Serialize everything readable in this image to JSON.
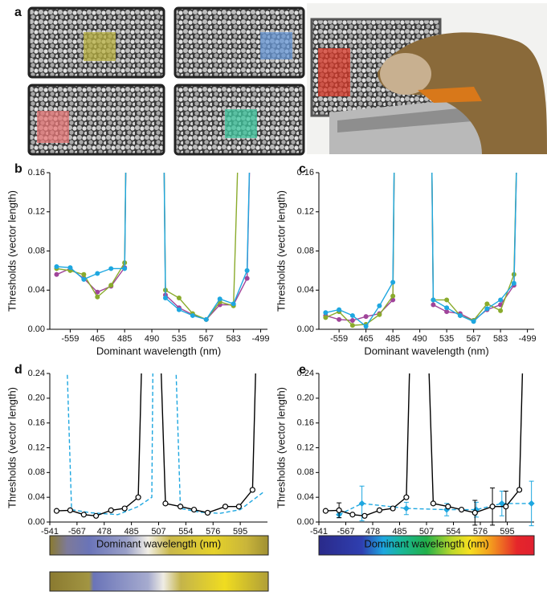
{
  "panel_a_label": "a",
  "chart_data": [
    {
      "type": "line",
      "label": "b",
      "ylabel": "Thresholds (vector length)",
      "xlabel": "Dominant wavelength (nm)",
      "xlim": [
        0,
        16
      ],
      "ylim": [
        0,
        0.16
      ],
      "xticks": [
        {
          "value": 1.5,
          "label": "-559"
        },
        {
          "value": 3.5,
          "label": "465"
        },
        {
          "value": 5.5,
          "label": "485"
        },
        {
          "value": 7.5,
          "label": "490"
        },
        {
          "value": 9.5,
          "label": "535"
        },
        {
          "value": 11.5,
          "label": "567"
        },
        {
          "value": 13.5,
          "label": "583"
        },
        {
          "value": 15.5,
          "label": "-499"
        }
      ],
      "yticks": [
        {
          "value": 0,
          "label": "0.00"
        },
        0.04,
        0.08,
        0.12,
        0.16
      ],
      "series": [
        {
          "color": "#a0449a",
          "marker": "circle-filled",
          "dashed": false,
          "x": [
            0.5,
            1.5,
            2.5,
            3.5,
            4.5,
            5.5,
            5.7,
            7,
            8.3,
            8.5,
            9.5,
            10.5,
            11.5,
            12.5,
            13.5,
            14.5,
            14.9
          ],
          "values": [
            0.056,
            0.062,
            0.052,
            0.038,
            0.044,
            0.063,
            0.3,
            null,
            0.3,
            0.035,
            0.022,
            0.015,
            0.01,
            0.025,
            0.025,
            0.052,
            0.3
          ]
        },
        {
          "color": "#8aab2c",
          "marker": "circle-filled",
          "dashed": false,
          "x": [
            0.5,
            1.5,
            2.5,
            3.5,
            4.5,
            5.5,
            5.7,
            7,
            8.3,
            8.5,
            9.5,
            10.5,
            11.5,
            12.5,
            13.5,
            14.1
          ],
          "values": [
            0.062,
            0.06,
            0.056,
            0.033,
            0.045,
            0.068,
            0.3,
            null,
            0.3,
            0.04,
            0.032,
            0.016,
            0.01,
            0.028,
            0.024,
            0.3
          ]
        },
        {
          "color": "#1ea7e0",
          "marker": "circle-filled",
          "dashed": false,
          "x": [
            0.5,
            1.5,
            2.5,
            3.5,
            4.5,
            5.5,
            5.7,
            7,
            8.3,
            8.5,
            9.5,
            10.5,
            11.5,
            12.5,
            13.5,
            14.5,
            14.9
          ],
          "values": [
            0.064,
            0.063,
            0.051,
            0.057,
            0.062,
            0.062,
            0.3,
            null,
            0.3,
            0.032,
            0.02,
            0.014,
            0.01,
            0.031,
            0.026,
            0.06,
            0.3
          ]
        }
      ]
    },
    {
      "type": "line",
      "label": "c",
      "ylabel": "Thresholds (vector length)",
      "xlabel": "Dominant wavelength (nm)",
      "xlim": [
        0,
        16
      ],
      "ylim": [
        0,
        0.16
      ],
      "xticks": [
        {
          "value": 1.5,
          "label": "-559"
        },
        {
          "value": 3.5,
          "label": "465"
        },
        {
          "value": 5.5,
          "label": "485"
        },
        {
          "value": 7.5,
          "label": "490"
        },
        {
          "value": 9.5,
          "label": "535"
        },
        {
          "value": 11.5,
          "label": "567"
        },
        {
          "value": 13.5,
          "label": "583"
        },
        {
          "value": 15.5,
          "label": "-499"
        }
      ],
      "yticks": [
        {
          "value": 0,
          "label": "0.00"
        },
        0.04,
        0.08,
        0.12,
        0.16
      ],
      "series": [
        {
          "color": "#a0449a",
          "marker": "circle-filled",
          "dashed": false,
          "x": [
            0.5,
            1.5,
            2.5,
            3.5,
            4.5,
            5.5,
            5.7,
            7,
            8.3,
            8.5,
            9.5,
            10.5,
            11.5,
            12.5,
            13.5,
            14.5,
            14.9
          ],
          "values": [
            0.014,
            0.01,
            0.009,
            0.013,
            0.016,
            0.03,
            0.3,
            null,
            0.3,
            0.025,
            0.018,
            0.016,
            0.009,
            0.02,
            0.025,
            0.045,
            0.3
          ]
        },
        {
          "color": "#8aab2c",
          "marker": "circle-filled",
          "dashed": false,
          "x": [
            0.5,
            1.5,
            2.5,
            3.5,
            4.5,
            5.5,
            5.7,
            7,
            8.3,
            8.5,
            9.5,
            10.5,
            11.5,
            12.5,
            13.5,
            14.5,
            14.9
          ],
          "values": [
            0.012,
            0.018,
            0.004,
            0.005,
            0.015,
            0.034,
            0.3,
            null,
            0.3,
            0.03,
            0.03,
            0.014,
            0.009,
            0.026,
            0.019,
            0.056,
            0.3
          ]
        },
        {
          "color": "#1ea7e0",
          "marker": "circle-filled",
          "dashed": false,
          "x": [
            0.5,
            1.5,
            2.5,
            3.5,
            4.5,
            5.5,
            5.7,
            7,
            8.3,
            8.5,
            9.5,
            10.5,
            11.5,
            12.5,
            13.5,
            14.5,
            14.9
          ],
          "values": [
            0.017,
            0.02,
            0.014,
            0.003,
            0.024,
            0.048,
            0.3,
            null,
            0.3,
            0.03,
            0.022,
            0.014,
            0.008,
            0.021,
            0.03,
            0.047,
            0.3
          ]
        }
      ]
    },
    {
      "type": "line",
      "label": "d",
      "ylabel": "Thresholds (vector length)",
      "xlabel": "Dominant wavelength (nm)",
      "xlim": [
        0,
        16
      ],
      "ylim": [
        0,
        0.24
      ],
      "xticks": [
        {
          "value": 0,
          "label": "-541"
        },
        {
          "value": 2,
          "label": "-567"
        },
        {
          "value": 4,
          "label": "478"
        },
        {
          "value": 6,
          "label": "485"
        },
        {
          "value": 8,
          "label": "507"
        },
        {
          "value": 10,
          "label": "554"
        },
        {
          "value": 12,
          "label": "576"
        },
        {
          "value": 14,
          "label": "595"
        }
      ],
      "yticks": [
        {
          "value": 0,
          "label": "0.00"
        },
        0.04,
        0.08,
        0.12,
        0.16,
        {
          "value": 0.2,
          "label": "0.20"
        },
        0.24
      ],
      "series": [
        {
          "color": "#1ea7e0",
          "marker": "none",
          "dashed": true,
          "x": [
            1.2,
            1.6,
            3,
            5,
            6.5,
            7.5,
            7.6,
            8.4,
            9.2,
            9.6,
            11,
            12.5,
            14,
            15.8
          ],
          "values": [
            0.3,
            0.02,
            0.015,
            0.012,
            0.025,
            0.04,
            0.3,
            null,
            0.3,
            0.022,
            0.016,
            0.014,
            0.02,
            0.05
          ]
        },
        {
          "color": "#000000",
          "marker": "circle-open",
          "dashed": false,
          "x": [
            0.5,
            1.5,
            2.5,
            3.4,
            4.5,
            5.5,
            6.5,
            6.8,
            7.5,
            8.1,
            8.5,
            9.6,
            10.6,
            11.6,
            12.9,
            13.9,
            14.9,
            15.2
          ],
          "values": [
            0.018,
            0.019,
            0.012,
            0.01,
            0.019,
            0.022,
            0.04,
            0.3,
            null,
            0.3,
            0.03,
            0.025,
            0.02,
            0.015,
            0.025,
            0.025,
            0.052,
            0.3
          ]
        }
      ]
    },
    {
      "type": "line",
      "label": "e",
      "ylabel": "Thresholds (vector length)",
      "xlabel": "Dominant wavelength (nm)",
      "xlim": [
        0,
        16
      ],
      "ylim": [
        0,
        0.24
      ],
      "xticks": [
        {
          "value": 0,
          "label": "-541"
        },
        {
          "value": 2,
          "label": "-567"
        },
        {
          "value": 4,
          "label": "478"
        },
        {
          "value": 6,
          "label": "485"
        },
        {
          "value": 8,
          "label": "507"
        },
        {
          "value": 10,
          "label": "554"
        },
        {
          "value": 12,
          "label": "576"
        },
        {
          "value": 14,
          "label": "595"
        }
      ],
      "yticks": [
        {
          "value": 0,
          "label": "0.00"
        },
        0.04,
        0.08,
        0.12,
        0.16,
        {
          "value": 0.2,
          "label": "0.20"
        },
        0.24
      ],
      "series": [
        {
          "color": "#1ea7e0",
          "marker": "diamond",
          "dashed": true,
          "x": [
            1.5,
            3.2,
            6.5,
            9.5,
            11.7,
            13.6,
            15.8
          ],
          "values": [
            0.012,
            0.03,
            0.022,
            0.02,
            0.02,
            0.03,
            0.03
          ],
          "errors": [
            0.005,
            0.028,
            0.01,
            0.01,
            0.012,
            0.02,
            0.036
          ]
        },
        {
          "color": "#000000",
          "marker": "circle-open",
          "dashed": false,
          "x": [
            0.5,
            1.5,
            2.5,
            3.4,
            4.5,
            5.5,
            6.5,
            6.8,
            7.5,
            8.1,
            8.5,
            9.6,
            10.6,
            11.6,
            12.9,
            13.9,
            14.9,
            15.2
          ],
          "values": [
            0.018,
            0.019,
            0.012,
            0.01,
            0.019,
            0.022,
            0.04,
            0.3,
            null,
            0.3,
            0.03,
            0.025,
            0.02,
            0.015,
            0.025,
            0.025,
            0.052,
            0.3
          ],
          "errors": [
            null,
            0.012,
            null,
            null,
            null,
            null,
            null,
            null,
            null,
            null,
            null,
            null,
            null,
            0.02,
            0.03,
            0.025,
            null,
            null
          ]
        }
      ]
    }
  ]
}
